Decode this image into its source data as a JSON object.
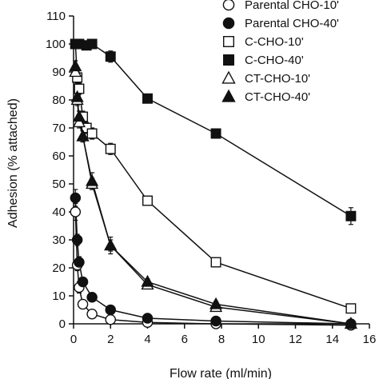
{
  "chart_data": {
    "type": "line",
    "title": "",
    "xlabel": "Flow rate (ml/min)",
    "ylabel": "Adhesion (% attached)",
    "xlim": [
      0,
      16
    ],
    "ylim": [
      0,
      110
    ],
    "xticks": [
      0,
      2,
      4,
      6,
      8,
      10,
      12,
      14,
      16
    ],
    "yticks": [
      0,
      10,
      20,
      30,
      40,
      50,
      60,
      70,
      80,
      90,
      100,
      110
    ],
    "grid": false,
    "legend_position": "top-right",
    "series": [
      {
        "name": "Parental CHO-10'",
        "marker": "circle-open",
        "x": [
          0.1,
          0.2,
          0.3,
          0.5,
          1.0,
          2.0,
          4.0,
          7.7,
          15.0
        ],
        "y": [
          40,
          21,
          13,
          7,
          3.5,
          1.5,
          0.5,
          0,
          -0.5
        ],
        "err": [
          3,
          2,
          2,
          1.5,
          1,
          0.5,
          0.5,
          0.5,
          0.5
        ]
      },
      {
        "name": "Parental CHO-40'",
        "marker": "circle-filled",
        "x": [
          0.1,
          0.2,
          0.3,
          0.5,
          1.0,
          2.0,
          4.0,
          7.7,
          15.0
        ],
        "y": [
          45,
          30,
          22,
          15,
          9.5,
          5,
          2,
          1,
          0
        ],
        "err": [
          3,
          2,
          2,
          1.5,
          1,
          0.5,
          0.5,
          0.5,
          0.5
        ]
      },
      {
        "name": "C-CHO-10'",
        "marker": "square-open",
        "x": [
          0.1,
          0.2,
          0.3,
          0.5,
          0.7,
          1.0,
          2.0,
          4.0,
          7.7,
          15.0
        ],
        "y": [
          100,
          88,
          84,
          74,
          70,
          68,
          62.5,
          44,
          22,
          5.5
        ],
        "err": [
          1,
          2,
          2,
          2,
          2,
          2,
          2,
          1,
          1,
          1
        ]
      },
      {
        "name": "C-CHO-40'",
        "marker": "square-filled",
        "x": [
          0.1,
          0.3,
          0.7,
          1.0,
          2.0,
          4.0,
          7.7,
          15.0
        ],
        "y": [
          100,
          100,
          99.5,
          100,
          95.5,
          80.5,
          68,
          38.5
        ],
        "err": [
          1,
          1,
          1,
          1,
          2,
          1,
          1,
          3
        ]
      },
      {
        "name": "CT-CHO-10'",
        "marker": "triangle-open",
        "x": [
          0.1,
          0.2,
          0.3,
          0.5,
          1.0,
          2.0,
          4.0,
          7.7,
          15.0
        ],
        "y": [
          90,
          80,
          72,
          67,
          50,
          28,
          14,
          6,
          0
        ],
        "err": [
          2,
          2,
          2,
          2,
          2,
          2,
          1,
          1,
          0.5
        ]
      },
      {
        "name": "CT-CHO-40'",
        "marker": "triangle-filled",
        "x": [
          0.1,
          0.2,
          0.3,
          0.5,
          1.0,
          2.0,
          4.0,
          7.7,
          15.0
        ],
        "y": [
          92,
          81,
          74,
          67,
          51,
          28,
          15,
          7,
          0
        ],
        "err": [
          2,
          2,
          2,
          2,
          3,
          3,
          1,
          1,
          0.5
        ]
      }
    ]
  }
}
